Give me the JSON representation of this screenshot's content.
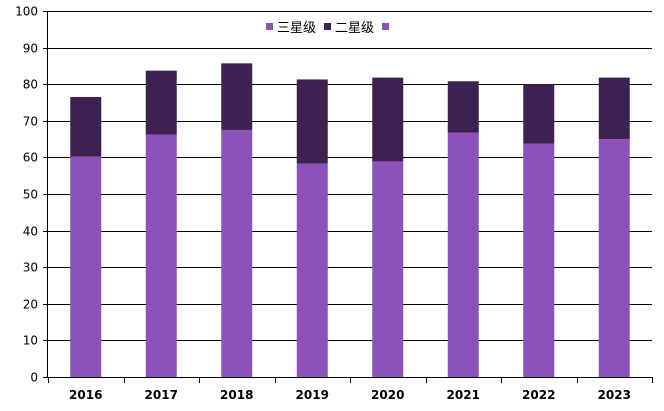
{
  "chart_data": {
    "type": "bar",
    "stacked": true,
    "categories": [
      "2016",
      "2017",
      "2018",
      "2019",
      "2020",
      "2021",
      "2022",
      "2023"
    ],
    "series": [
      {
        "name": "三星级",
        "color": "#8c52b9",
        "values": [
          60.2,
          66.2,
          67.5,
          58.3,
          58.9,
          66.8,
          63.8,
          65.0
        ]
      },
      {
        "name": "二星级",
        "color": "#3d2150",
        "values": [
          16.3,
          17.5,
          18.2,
          23.0,
          22.9,
          14.0,
          16.2,
          16.8
        ]
      }
    ],
    "legend_extra_swatch_color": "#8c52b9",
    "yticks": [
      "0",
      "10",
      "20",
      "30",
      "40",
      "50",
      "60",
      "70",
      "80",
      "90",
      "100"
    ],
    "ylim": [
      0,
      100
    ],
    "grid": true,
    "legend_position": "top-center"
  }
}
